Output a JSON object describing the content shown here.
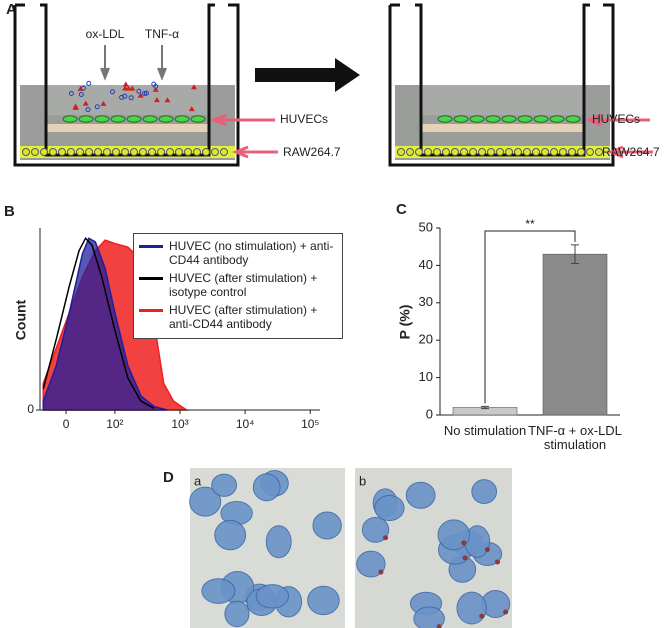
{
  "panel_a": {
    "label": "A",
    "stimuli": [
      "ox-LDL",
      "TNF-α"
    ],
    "cells_left": [
      "HUVECs",
      "RAW264.7"
    ],
    "cells_right": [
      "HUVECs",
      "RAW264.7"
    ]
  },
  "chart_data": [
    {
      "type": "area",
      "panel_label": "B",
      "y_label": "Count",
      "xlim": [
        0.85,
        5.15
      ],
      "xticks": [
        {
          "value": 1.25,
          "label": "0"
        },
        {
          "value": 2,
          "label": "10²"
        },
        {
          "value": 3,
          "label": "10³"
        },
        {
          "value": 4,
          "label": "10⁴"
        },
        {
          "value": 5,
          "label": "10⁵"
        }
      ],
      "ylim": [
        0,
        100
      ],
      "yticks": [
        0
      ],
      "series": [
        {
          "name": "HUVEC (no stimulation) + anti-CD44 antibody",
          "color": "#1f1f9e",
          "x": [
            0.9,
            1.1,
            1.3,
            1.5,
            1.6,
            1.7,
            1.85,
            2.0,
            2.2,
            2.4,
            2.6,
            2.8
          ],
          "values": [
            5,
            25,
            55,
            88,
            97,
            95,
            80,
            55,
            25,
            8,
            2,
            0
          ]
        },
        {
          "name": "HUVEC (after stimulation) + isotype control",
          "color": "#000000",
          "x": [
            0.9,
            1.1,
            1.3,
            1.45,
            1.55,
            1.65,
            1.8,
            2.0,
            2.2,
            2.4,
            2.6
          ],
          "values": [
            12,
            40,
            70,
            90,
            97,
            93,
            75,
            45,
            18,
            5,
            1
          ]
        },
        {
          "name": "HUVEC (after stimulation) + anti-CD44 antibody",
          "color": "#f02020",
          "x": [
            0.9,
            1.1,
            1.3,
            1.5,
            1.7,
            1.85,
            2.0,
            2.2,
            2.4,
            2.6,
            2.75,
            2.9,
            3.1
          ],
          "values": [
            15,
            35,
            55,
            75,
            90,
            96,
            94,
            92,
            85,
            50,
            15,
            5,
            0
          ]
        }
      ]
    },
    {
      "type": "bar",
      "panel_label": "C",
      "y_label": "P (%)",
      "categories": [
        "No stimulation",
        "TNF-α + ox-LDL stimulation"
      ],
      "values": [
        2,
        43
      ],
      "errors": [
        0.3,
        2.5
      ],
      "colors": [
        "#c8c8c8",
        "#8a8a8a"
      ],
      "ylim": [
        0,
        50
      ],
      "yticks": [
        0,
        10,
        20,
        30,
        40,
        50
      ],
      "annotation": "**"
    }
  ],
  "panel_d": {
    "label": "D",
    "images": [
      "a",
      "b"
    ]
  }
}
